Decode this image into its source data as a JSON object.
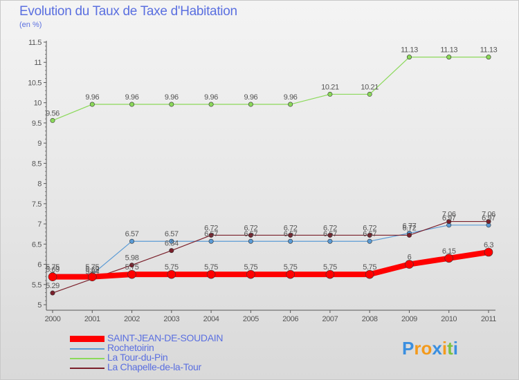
{
  "title": "Evolution du Taux de Taxe d'Habitation",
  "subtitle": "(en %)",
  "logo": {
    "text": "Proxiti",
    "letters": [
      "P",
      "r",
      "o",
      "x",
      "i",
      "t",
      "i"
    ],
    "colors": [
      "#3a8fe0",
      "#f39a1c",
      "#f39a1c",
      "#3a8fe0",
      "#f39a1c",
      "#7cc142",
      "#3a8fe0"
    ]
  },
  "chart_data": {
    "type": "line",
    "title": "Evolution du Taux de Taxe d'Habitation",
    "ylabel": "(en %)",
    "xlabel": "",
    "ylim": [
      5,
      11.5
    ],
    "yticks": [
      5,
      5.5,
      6,
      6.5,
      7,
      7.5,
      8,
      8.5,
      9,
      9.5,
      10,
      10.5,
      11,
      11.5
    ],
    "ytick_labels": [
      "5",
      "5.5",
      "6",
      "6.5",
      "7",
      "7.5",
      "8",
      "8.5",
      "9",
      "9.5",
      "10",
      "10.5",
      "11",
      "11.5"
    ],
    "categories": [
      "2000",
      "2001",
      "2002",
      "2003",
      "2004",
      "2005",
      "2006",
      "2007",
      "2008",
      "2009",
      "2010",
      "2011"
    ],
    "grid": false,
    "legend_position": "bottom-left",
    "series": [
      {
        "name": "SAINT-JEAN-DE-SOUDAIN",
        "color": "#ff0000",
        "values": [
          5.69,
          5.69,
          5.75,
          5.75,
          5.75,
          5.75,
          5.75,
          5.75,
          5.75,
          6,
          6.15,
          6.3
        ]
      },
      {
        "name": "Rochetoirin",
        "color": "#5b9bd5",
        "values": [
          5.75,
          5.75,
          6.57,
          6.57,
          6.57,
          6.57,
          6.57,
          6.57,
          6.57,
          6.77,
          6.97,
          6.97
        ]
      },
      {
        "name": "La Tour-du-Pin",
        "color": "#8bd95a",
        "values": [
          9.56,
          9.96,
          9.96,
          9.96,
          9.96,
          9.96,
          9.96,
          10.21,
          10.21,
          11.13,
          11.13,
          11.13
        ]
      },
      {
        "name": "La Chapelle-de-la-Tour",
        "color": "#7a1f2a",
        "values": [
          5.29,
          5.64,
          5.98,
          6.34,
          6.72,
          6.72,
          6.72,
          6.72,
          6.72,
          6.72,
          7.06,
          7.06
        ]
      }
    ],
    "value_labels": [
      [
        "5.69",
        "5.69",
        "5.75",
        "5.75",
        "5.75",
        "5.75",
        "5.75",
        "5.75",
        "5.75",
        "6",
        "6.15",
        "6.3"
      ],
      [
        "5.75",
        "5.75",
        "6.57",
        "6.57",
        "6.57",
        "6.57",
        "6.57",
        "6.57",
        "6.57",
        "6.77",
        "6.97",
        "6.97"
      ],
      [
        "9.56",
        "9.96",
        "9.96",
        "9.96",
        "9.96",
        "9.96",
        "9.96",
        "10.21",
        "10.21",
        "11.13",
        "11.13",
        "11.13"
      ],
      [
        "5.29",
        "5.64",
        "5.98",
        "6.34",
        "6.72",
        "6.72",
        "6.72",
        "6.72",
        "6.72",
        "6.72",
        "7.06",
        "7.06"
      ]
    ]
  }
}
